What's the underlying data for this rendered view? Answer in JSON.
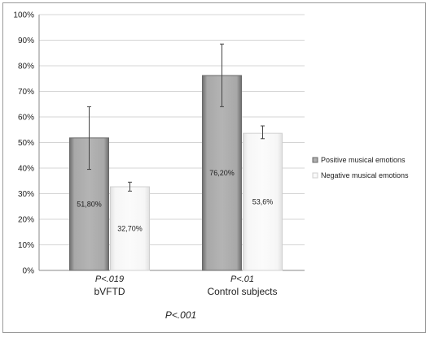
{
  "chart_data": {
    "type": "bar",
    "title": "",
    "xlabel": "",
    "ylabel": "",
    "ylim": [
      0,
      100
    ],
    "yticks": [
      "0%",
      "10%",
      "20%",
      "30%",
      "40%",
      "50%",
      "60%",
      "70%",
      "80%",
      "90%",
      "100%"
    ],
    "categories": [
      "bVFTD",
      "Control subjects"
    ],
    "category_p_values": [
      "P<.019",
      "P<.01"
    ],
    "overall_p_value": "P<.001",
    "grid": true,
    "legend_position": "right",
    "series": [
      {
        "name": "Positive musical emotions",
        "color": "#9a9a9a",
        "values": [
          51.8,
          76.2
        ],
        "labels": [
          "51,80%",
          "76,20%"
        ],
        "error_low": [
          39.5,
          64
        ],
        "error_high": [
          64,
          88.5
        ]
      },
      {
        "name": "Negative musical emotions",
        "color": "#f2f2f2",
        "values": [
          32.7,
          53.6
        ],
        "labels": [
          "32,70%",
          "53,6%"
        ],
        "error_low": [
          31,
          51.5
        ],
        "error_high": [
          34.5,
          56.5
        ]
      }
    ]
  }
}
